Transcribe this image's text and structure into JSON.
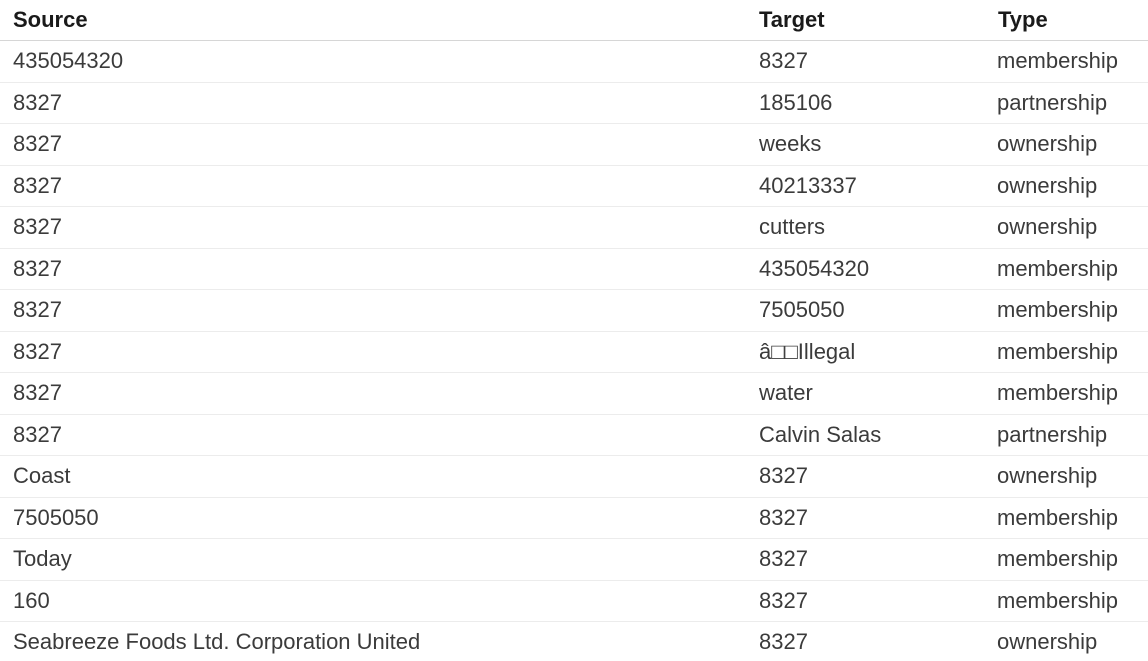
{
  "table": {
    "headers": {
      "source": "Source",
      "target": "Target",
      "type": "Type"
    },
    "rows": [
      {
        "source": "435054320",
        "target": "8327",
        "type": "membership"
      },
      {
        "source": "8327",
        "target": "185106",
        "type": "partnership"
      },
      {
        "source": "8327",
        "target": "weeks",
        "type": "ownership"
      },
      {
        "source": "8327",
        "target": "40213337",
        "type": "ownership"
      },
      {
        "source": "8327",
        "target": "cutters",
        "type": "ownership"
      },
      {
        "source": "8327",
        "target": "435054320",
        "type": "membership"
      },
      {
        "source": "8327",
        "target": "7505050",
        "type": "membership"
      },
      {
        "source": "8327",
        "target": "â□□Illegal",
        "type": "membership"
      },
      {
        "source": "8327",
        "target": "water",
        "type": "membership"
      },
      {
        "source": "8327",
        "target": "Calvin Salas",
        "type": "partnership"
      },
      {
        "source": "Coast",
        "target": "8327",
        "type": "ownership"
      },
      {
        "source": "7505050",
        "target": "8327",
        "type": "membership"
      },
      {
        "source": "Today",
        "target": "8327",
        "type": "membership"
      },
      {
        "source": "160",
        "target": "8327",
        "type": "membership"
      },
      {
        "source": "Seabreeze Foods Ltd. Corporation United",
        "target": "8327",
        "type": "ownership"
      }
    ]
  }
}
